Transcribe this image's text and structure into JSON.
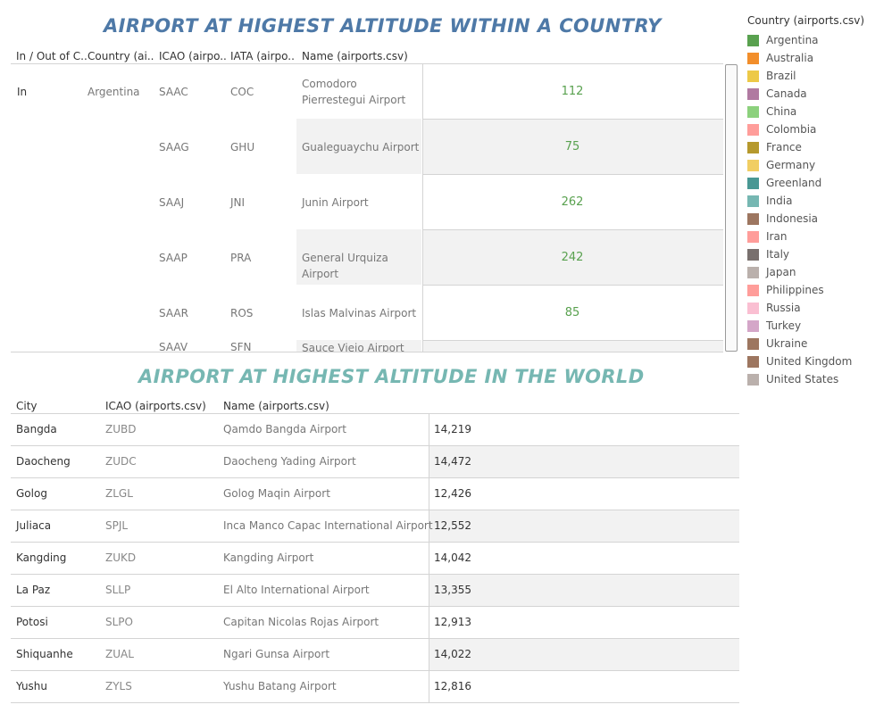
{
  "title_top": "AIRPORT AT HIGHEST ALTITUDE WITHIN A COUNTRY",
  "title_bottom": "AIRPORT AT HIGHEST ALTITUDE IN THE WORLD",
  "top_table": {
    "headers": [
      "In / Out of C..",
      "Country (ai..",
      "ICAO (airpo..",
      "IATA (airpo..",
      "Name (airports.csv)"
    ],
    "in_label": "In",
    "country_label": "Argentina",
    "value_color": "#59a14f",
    "rows": [
      {
        "icao": "SAAC",
        "iata": "COC",
        "name": "Comodoro Pierrestegui Airport",
        "value": "112"
      },
      {
        "icao": "SAAG",
        "iata": "GHU",
        "name": "Gualeguaychu Airport",
        "value": "75"
      },
      {
        "icao": "SAAJ",
        "iata": "JNI",
        "name": "Junin Airport",
        "value": "262"
      },
      {
        "icao": "SAAP",
        "iata": "PRA",
        "name": "General Urquiza Airport",
        "value": "242"
      },
      {
        "icao": "SAAR",
        "iata": "ROS",
        "name": "Islas Malvinas Airport",
        "value": "85"
      },
      {
        "icao": "SAAV",
        "iata": "SFN",
        "name": "Sauce Viejo Airport",
        "value": ""
      }
    ]
  },
  "bottom_table": {
    "headers": [
      "City",
      "ICAO (airports.csv)",
      "Name (airports.csv)"
    ],
    "rows": [
      {
        "city": "Bangda",
        "icao": "ZUBD",
        "name": "Qamdo Bangda Airport",
        "value": "14,219"
      },
      {
        "city": "Daocheng",
        "icao": "ZUDC",
        "name": "Daocheng Yading Airport",
        "value": "14,472"
      },
      {
        "city": "Golog",
        "icao": "ZLGL",
        "name": "Golog Maqin Airport",
        "value": "12,426"
      },
      {
        "city": "Juliaca",
        "icao": "SPJL",
        "name": "Inca Manco Capac International Airport",
        "value": "12,552"
      },
      {
        "city": "Kangding",
        "icao": "ZUKD",
        "name": "Kangding Airport",
        "value": "14,042"
      },
      {
        "city": "La Paz",
        "icao": "SLLP",
        "name": "El Alto International Airport",
        "value": "13,355"
      },
      {
        "city": "Potosi",
        "icao": "SLPO",
        "name": "Capitan Nicolas Rojas Airport",
        "value": "12,913"
      },
      {
        "city": "Shiquanhe",
        "icao": "ZUAL",
        "name": "Ngari Gunsa Airport",
        "value": "14,022"
      },
      {
        "city": "Yushu",
        "icao": "ZYLS",
        "name": "Yushu Batang Airport",
        "value": "12,816"
      }
    ]
  },
  "legend": {
    "title": "Country (airports.csv)",
    "items": [
      {
        "label": "Argentina",
        "color": "#59a14f"
      },
      {
        "label": "Australia",
        "color": "#f28e2b"
      },
      {
        "label": "Brazil",
        "color": "#edc948"
      },
      {
        "label": "Canada",
        "color": "#b07aa1"
      },
      {
        "label": "China",
        "color": "#8cd17d"
      },
      {
        "label": "Colombia",
        "color": "#ff9d9a"
      },
      {
        "label": "France",
        "color": "#b6992d"
      },
      {
        "label": "Germany",
        "color": "#f1ce63"
      },
      {
        "label": "Greenland",
        "color": "#499894"
      },
      {
        "label": "India",
        "color": "#76b7b2"
      },
      {
        "label": "Indonesia",
        "color": "#9d7660"
      },
      {
        "label": "Iran",
        "color": "#ff9d9a"
      },
      {
        "label": "Italy",
        "color": "#79706e"
      },
      {
        "label": "Japan",
        "color": "#bab0ac"
      },
      {
        "label": "Philippines",
        "color": "#ff9d9a"
      },
      {
        "label": "Russia",
        "color": "#fabfd2"
      },
      {
        "label": "Turkey",
        "color": "#d4a6c8"
      },
      {
        "label": "Ukraine",
        "color": "#9d7660"
      },
      {
        "label": "United Kingdom",
        "color": "#9d7660"
      },
      {
        "label": "United States",
        "color": "#bab0ac"
      }
    ]
  }
}
